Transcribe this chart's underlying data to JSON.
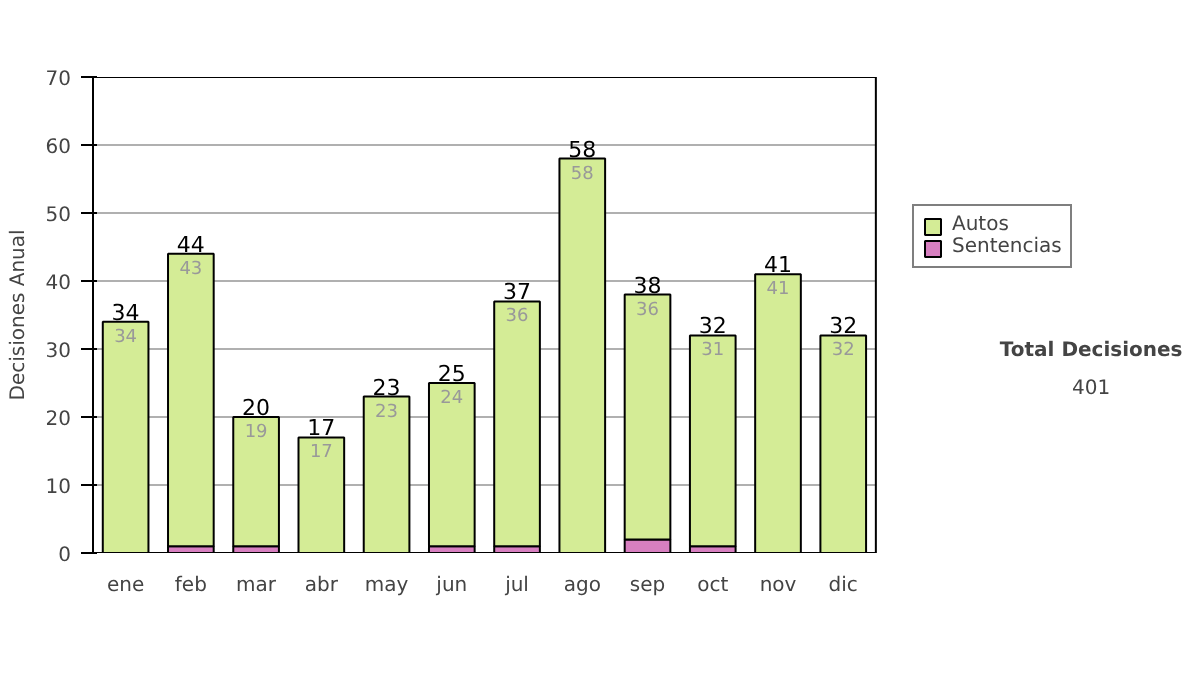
{
  "chart_data": {
    "type": "bar",
    "stacked": true,
    "ylabel": "Decisiones Anual",
    "categories": [
      "ene",
      "feb",
      "mar",
      "abr",
      "may",
      "jun",
      "jul",
      "ago",
      "sep",
      "oct",
      "nov",
      "dic"
    ],
    "series": [
      {
        "name": "Sentencias",
        "color": "#d77fc0",
        "values": [
          0,
          1,
          1,
          0,
          0,
          1,
          1,
          0,
          2,
          1,
          0,
          0
        ]
      },
      {
        "name": "Autos",
        "color": "#d4ec96",
        "values": [
          34,
          43,
          19,
          17,
          23,
          24,
          36,
          58,
          36,
          31,
          41,
          32
        ],
        "value_labels": [
          "34",
          "43",
          "19",
          "17",
          "23",
          "24",
          "36",
          "58",
          "36",
          "31",
          "41",
          "32"
        ]
      }
    ],
    "totals": [
      "34",
      "44",
      "20",
      "17",
      "23",
      "25",
      "37",
      "58",
      "38",
      "32",
      "41",
      "32"
    ],
    "ylim": [
      0,
      70
    ],
    "yticks": [
      0,
      10,
      20,
      30,
      40,
      50,
      60,
      70
    ],
    "grid": "y",
    "legend": "right",
    "annotations": [
      "Total Decisiones",
      "401"
    ]
  }
}
